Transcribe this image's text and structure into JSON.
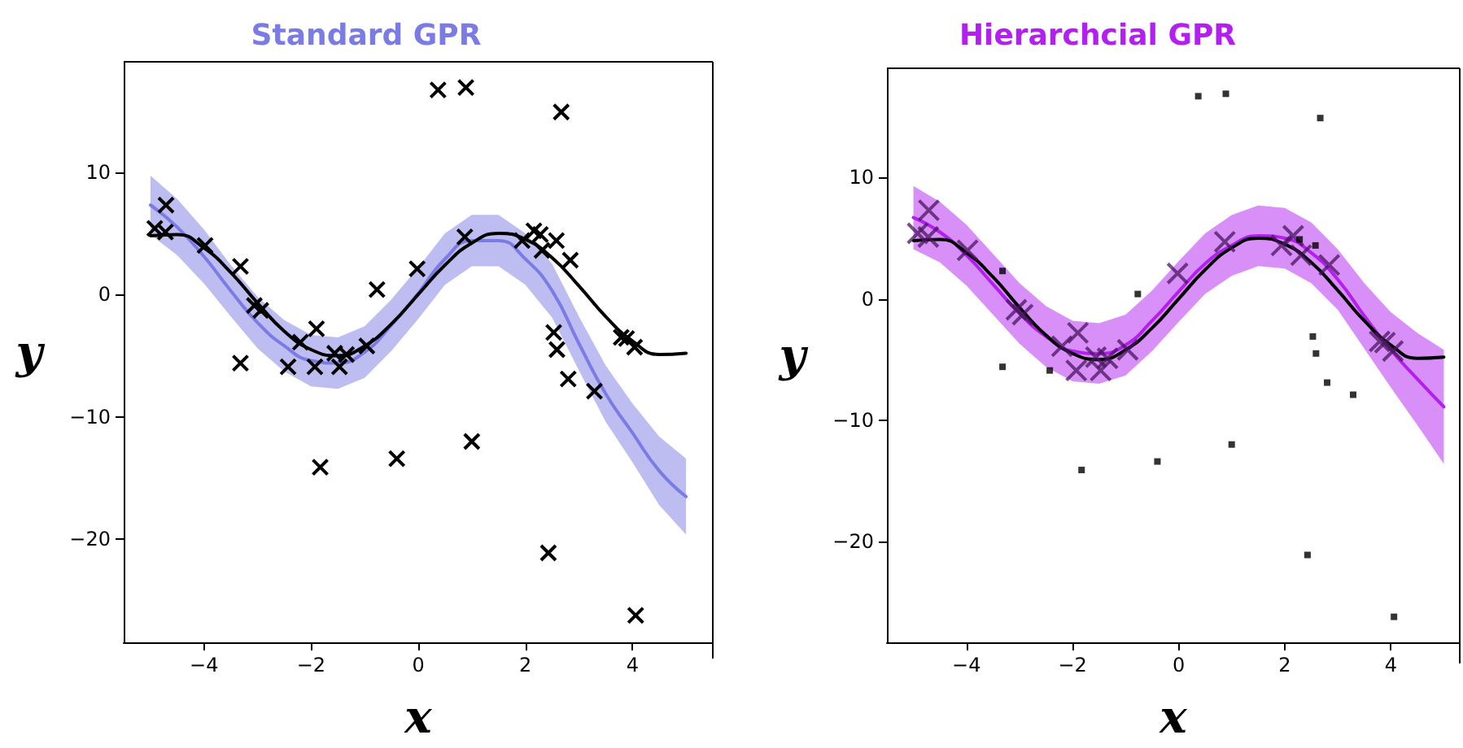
{
  "chart_data": [
    {
      "type": "line",
      "title": "Standard GPR",
      "xlabel": "x",
      "ylabel": "y",
      "xlim": [
        -5.5,
        5.5
      ],
      "ylim": [
        -28.4,
        19
      ],
      "xticks": [
        -4,
        -2,
        0,
        2,
        4
      ],
      "yticks": [
        -20,
        -10,
        0,
        10
      ],
      "grid": false,
      "series": [
        {
          "color": "#7b7be6",
          "marker": "none",
          "line_style": "solid",
          "x": [
            -5,
            -4.5,
            -4,
            -3.5,
            -3,
            -2.5,
            -2,
            -1.5,
            -1,
            -0.5,
            0,
            0.5,
            1,
            1.5,
            2,
            2.5,
            3,
            3.5,
            4,
            4.5,
            5
          ],
          "values": [
            7.3,
            5.5,
            3.1,
            0.3,
            -2.3,
            -4.2,
            -5.4,
            -5.6,
            -4.7,
            -2.5,
            0.1,
            2.9,
            4.4,
            4.4,
            2.9,
            0.3,
            -4.0,
            -8.1,
            -11.3,
            -14.4,
            -16.5
          ],
          "lower": [
            4.9,
            3.2,
            0.9,
            -1.8,
            -4.4,
            -6.3,
            -7.5,
            -7.7,
            -6.8,
            -4.6,
            -2.0,
            0.8,
            2.3,
            2.3,
            0.8,
            -1.9,
            -6.2,
            -10.4,
            -13.7,
            -17.2,
            -19.6
          ],
          "upper": [
            9.7,
            7.8,
            5.3,
            2.4,
            -0.2,
            -2.1,
            -3.3,
            -3.5,
            -2.6,
            -0.4,
            2.2,
            5.0,
            6.5,
            6.5,
            5.0,
            2.5,
            -1.8,
            -5.8,
            -8.9,
            -11.6,
            -13.4
          ]
        },
        {
          "type": "line",
          "color": "#000000",
          "marker": "none",
          "line_style": "solid",
          "x": [
            -5,
            -4.5,
            -4,
            -3.5,
            -3,
            -2.5,
            -2,
            -1.5,
            -1,
            -0.5,
            0,
            0.5,
            1,
            1.5,
            2,
            2.5,
            3,
            3.5,
            4,
            4.5,
            5
          ],
          "values": [
            4.8,
            4.9,
            3.8,
            1.8,
            -0.7,
            -3.0,
            -4.5,
            -5.0,
            -4.2,
            -2.4,
            0,
            2.4,
            4.2,
            5.0,
            4.5,
            3.0,
            0.7,
            -1.8,
            -3.8,
            -4.9,
            -4.8
          ]
        },
        {
          "type": "scatter",
          "color": "#000000",
          "marker": "cross",
          "x": [
            -4.92,
            -4.72,
            -4.71,
            -3.98,
            -3.32,
            -3.32,
            -3.06,
            -2.94,
            -2.43,
            -2.2,
            -1.93,
            -1.9,
            -1.83,
            -1.56,
            -1.47,
            -1.34,
            -0.96,
            -0.77,
            -0.4,
            -0.02,
            0.37,
            0.87,
            0.89,
            1.0,
            1.94,
            2.16,
            2.28,
            2.31,
            2.43,
            2.53,
            2.58,
            2.59,
            2.67,
            2.8,
            2.84,
            3.29,
            3.79,
            3.89,
            4.04,
            4.06
          ],
          "values": [
            5.4,
            5.1,
            7.3,
            4.0,
            2.3,
            -5.6,
            -0.9,
            -1.3,
            -5.9,
            -3.9,
            -5.9,
            -2.8,
            -14.1,
            -4.8,
            -5.9,
            -4.9,
            -4.2,
            0.4,
            -13.4,
            2.1,
            16.7,
            4.7,
            16.9,
            -12.0,
            4.4,
            5.2,
            4.9,
            3.6,
            -21.1,
            -3.1,
            4.4,
            -4.5,
            14.9,
            -6.9,
            2.8,
            -7.9,
            -3.5,
            -3.6,
            -4.3,
            -26.2
          ]
        }
      ]
    },
    {
      "type": "line",
      "title": "Hierarchcial GPR",
      "xlabel": "x",
      "ylabel": "y",
      "xlim": [
        -5.5,
        5.3
      ],
      "ylim": [
        -28.3,
        19
      ],
      "xticks": [
        -4,
        -2,
        0,
        2,
        4
      ],
      "yticks": [
        -20,
        -10,
        0,
        10
      ],
      "grid": false,
      "series": [
        {
          "color": "#b21ff0",
          "marker": "none",
          "line_style": "solid",
          "x": [
            -5,
            -4.5,
            -4,
            -3.5,
            -3,
            -2.5,
            -2,
            -1.5,
            -1,
            -0.5,
            0,
            0.5,
            1,
            1.5,
            2,
            2.5,
            3,
            3.5,
            4,
            4.5,
            5
          ],
          "values": [
            6.7,
            5.5,
            3.6,
            1.2,
            -1.2,
            -3.1,
            -4.3,
            -4.5,
            -3.8,
            -1.8,
            0.6,
            2.9,
            4.4,
            5.2,
            5.0,
            3.8,
            1.6,
            -1.4,
            -4.2,
            -6.6,
            -8.9
          ],
          "lower": [
            4.1,
            3.0,
            1.1,
            -1.3,
            -3.7,
            -5.6,
            -6.8,
            -7.0,
            -6.3,
            -4.3,
            -1.9,
            0.4,
            1.9,
            2.7,
            2.5,
            1.3,
            -0.9,
            -4.1,
            -7.3,
            -10.4,
            -13.6
          ],
          "upper": [
            9.3,
            8.0,
            6.1,
            3.7,
            1.3,
            -0.6,
            -1.8,
            -2.0,
            -1.3,
            0.7,
            3.1,
            5.4,
            6.9,
            7.7,
            7.5,
            6.3,
            4.1,
            1.3,
            -1.1,
            -2.8,
            -4.2
          ]
        },
        {
          "type": "line",
          "color": "#000000",
          "marker": "none",
          "line_style": "solid",
          "x": [
            -5,
            -4.5,
            -4,
            -3.5,
            -3,
            -2.5,
            -2,
            -1.5,
            -1,
            -0.5,
            0,
            0.5,
            1,
            1.5,
            2,
            2.5,
            3,
            3.5,
            4,
            4.5,
            5
          ],
          "values": [
            4.8,
            4.9,
            3.8,
            1.8,
            -0.7,
            -3.0,
            -4.5,
            -5.0,
            -4.2,
            -2.4,
            0,
            2.4,
            4.2,
            5.0,
            4.5,
            3.0,
            0.7,
            -1.8,
            -3.8,
            -4.9,
            -4.8
          ]
        },
        {
          "type": "scatter",
          "color": "#4a1660",
          "marker": "cross",
          "x": [
            -4.92,
            -4.72,
            -4.71,
            -3.98,
            -3.06,
            -2.94,
            -2.2,
            -1.93,
            -1.9,
            -1.56,
            -1.47,
            -1.34,
            -0.96,
            -0.02,
            0.87,
            1.94,
            2.16,
            2.31,
            2.84,
            3.79,
            3.89,
            4.04
          ],
          "values": [
            5.4,
            5.1,
            7.3,
            4.0,
            -0.9,
            -1.3,
            -3.9,
            -5.9,
            -2.8,
            -4.8,
            -5.9,
            -4.9,
            -4.2,
            2.1,
            4.7,
            4.4,
            5.2,
            3.6,
            2.8,
            -3.5,
            -3.6,
            -4.3
          ]
        },
        {
          "type": "scatter",
          "color": "#000000",
          "marker": "square",
          "x": [
            -3.32,
            -3.32,
            -2.43,
            -1.83,
            -0.77,
            -0.4,
            0.37,
            0.89,
            1.0,
            2.28,
            2.43,
            2.53,
            2.58,
            2.59,
            2.67,
            2.8,
            3.29,
            4.06
          ],
          "values": [
            2.3,
            -5.6,
            -5.9,
            -14.1,
            0.4,
            -13.4,
            16.7,
            16.9,
            -12.0,
            4.9,
            -21.1,
            -3.1,
            4.4,
            -4.5,
            14.9,
            -6.9,
            -7.9,
            -26.2
          ]
        }
      ]
    }
  ]
}
